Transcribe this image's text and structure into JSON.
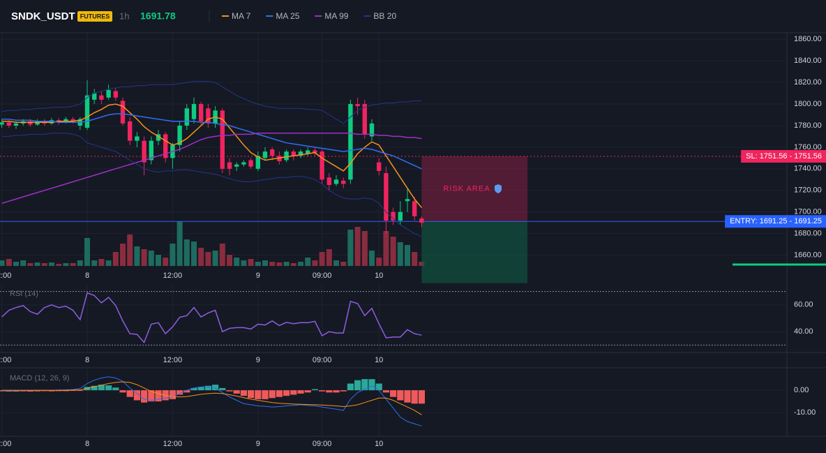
{
  "header": {
    "symbol": "SNDK_USDT",
    "badge": "FUTURES",
    "interval": "1h",
    "last_price": 1691.78
  },
  "chart_data": [
    {
      "type": "candlestick",
      "categories": [
        "12:00",
        null,
        null,
        null,
        null,
        null,
        null,
        null,
        null,
        null,
        null,
        null,
        "8",
        null,
        null,
        null,
        null,
        null,
        null,
        null,
        null,
        null,
        null,
        null,
        "12:00",
        null,
        null,
        null,
        null,
        null,
        null,
        null,
        null,
        null,
        null,
        null,
        "9",
        null,
        null,
        null,
        null,
        null,
        null,
        null,
        null,
        "09:00",
        null,
        null,
        null,
        null,
        null,
        null,
        null,
        "10",
        null,
        null,
        null,
        null,
        null,
        null
      ],
      "open": [
        1781,
        1783,
        1780,
        1782,
        1784,
        1781,
        1784,
        1782,
        1785,
        1783,
        1786,
        1780,
        1778,
        1804,
        1808,
        1806,
        1812,
        1803,
        1784,
        1766,
        1766,
        1748,
        1766,
        1772,
        1750,
        1762,
        1780,
        1786,
        1800,
        1796,
        1782,
        1794,
        1746,
        1742,
        1744,
        1748,
        1740,
        1750,
        1758,
        1752,
        1748,
        1756,
        1752,
        1754,
        1757,
        1756,
        1732,
        1726,
        1729,
        1730,
        1800,
        1800,
        1770,
        1746,
        1736,
        1700,
        1692,
        1710,
        1710,
        1694
      ],
      "high": [
        1786,
        1785,
        1784,
        1786,
        1786,
        1786,
        1786,
        1787,
        1787,
        1788,
        1788,
        1788,
        1822,
        1814,
        1812,
        1818,
        1815,
        1806,
        1788,
        1774,
        1770,
        1770,
        1776,
        1774,
        1764,
        1784,
        1800,
        1806,
        1802,
        1800,
        1798,
        1796,
        1750,
        1746,
        1748,
        1750,
        1756,
        1760,
        1760,
        1756,
        1758,
        1758,
        1758,
        1760,
        1760,
        1758,
        1736,
        1734,
        1732,
        1804,
        1806,
        1804,
        1786,
        1750,
        1742,
        1704,
        1710,
        1722,
        1714,
        1696
      ],
      "low": [
        1778,
        1778,
        1777,
        1780,
        1779,
        1780,
        1780,
        1781,
        1781,
        1782,
        1782,
        1776,
        1776,
        1800,
        1800,
        1804,
        1803,
        1780,
        1762,
        1760,
        1734,
        1744,
        1762,
        1746,
        1740,
        1756,
        1776,
        1782,
        1780,
        1778,
        1778,
        1736,
        1734,
        1738,
        1742,
        1740,
        1738,
        1748,
        1748,
        1744,
        1746,
        1748,
        1750,
        1752,
        1752,
        1726,
        1720,
        1724,
        1722,
        1726,
        1790,
        1768,
        1766,
        1734,
        1680,
        1688,
        1688,
        1700,
        1692,
        1686
      ],
      "close": [
        1783,
        1780,
        1782,
        1784,
        1781,
        1784,
        1782,
        1785,
        1783,
        1786,
        1784,
        1786,
        1808,
        1810,
        1804,
        1813,
        1806,
        1782,
        1766,
        1770,
        1746,
        1766,
        1772,
        1750,
        1762,
        1780,
        1796,
        1800,
        1784,
        1782,
        1794,
        1740,
        1740,
        1744,
        1746,
        1742,
        1752,
        1756,
        1752,
        1747,
        1756,
        1752,
        1756,
        1757,
        1755,
        1730,
        1725,
        1730,
        1726,
        1800,
        1798,
        1772,
        1782,
        1738,
        1692,
        1692,
        1700,
        1712,
        1696,
        1690
      ],
      "volume": [
        8,
        10,
        6,
        8,
        4,
        5,
        4,
        5,
        3,
        4,
        4,
        8,
        40,
        8,
        10,
        8,
        20,
        32,
        45,
        28,
        24,
        22,
        16,
        12,
        32,
        64,
        38,
        35,
        26,
        20,
        22,
        32,
        16,
        12,
        8,
        10,
        6,
        8,
        6,
        5,
        6,
        4,
        6,
        12,
        8,
        20,
        24,
        8,
        6,
        52,
        56,
        50,
        22,
        12,
        50,
        42,
        34,
        30,
        20,
        6
      ],
      "up_color": "#0ecb81",
      "down_color": "#f0245e",
      "volume_up_color": "#1e6b5f",
      "volume_down_color": "#8a2c3f",
      "series": [
        {
          "name": "MA 7",
          "color": "#f7931a",
          "values": [
            1784,
            1784,
            1783,
            1783,
            1783,
            1783,
            1783,
            1783,
            1784,
            1784,
            1784,
            1785,
            1788,
            1792,
            1795,
            1799,
            1800,
            1798,
            1792,
            1786,
            1779,
            1774,
            1770,
            1766,
            1762,
            1764,
            1768,
            1774,
            1780,
            1786,
            1788,
            1786,
            1778,
            1770,
            1762,
            1755,
            1751,
            1748,
            1749,
            1750,
            1751,
            1752,
            1753,
            1754,
            1755,
            1750,
            1746,
            1742,
            1738,
            1745,
            1754,
            1760,
            1765,
            1762,
            1752,
            1742,
            1732,
            1722,
            1712,
            1704
          ]
        },
        {
          "name": "MA 25",
          "color": "#2f6ff0",
          "values": [
            1786,
            1786,
            1785,
            1785,
            1785,
            1784,
            1784,
            1784,
            1783,
            1783,
            1783,
            1783,
            1784,
            1786,
            1788,
            1790,
            1791,
            1791,
            1790,
            1789,
            1788,
            1787,
            1786,
            1785,
            1784,
            1784,
            1784,
            1784,
            1783,
            1783,
            1782,
            1781,
            1780,
            1778,
            1776,
            1774,
            1772,
            1770,
            1768,
            1766,
            1764,
            1763,
            1762,
            1761,
            1760,
            1759,
            1758,
            1757,
            1756,
            1757,
            1758,
            1759,
            1758,
            1756,
            1754,
            1752,
            1749,
            1746,
            1743,
            1740
          ]
        },
        {
          "name": "MA 99",
          "color": "#a12fc4",
          "values": [
            1708,
            1710,
            1712,
            1714,
            1716,
            1718,
            1720,
            1722,
            1724,
            1726,
            1728,
            1730,
            1732,
            1734,
            1736,
            1738,
            1740,
            1742,
            1744,
            1746,
            1748,
            1750,
            1752,
            1754,
            1756,
            1758,
            1761,
            1764,
            1767,
            1769,
            1770,
            1771,
            1771,
            1772,
            1772,
            1772,
            1773,
            1773,
            1773,
            1773,
            1773,
            1773,
            1773,
            1773,
            1773,
            1773,
            1773,
            1773,
            1773,
            1773,
            1772,
            1772,
            1772,
            1771,
            1771,
            1770,
            1770,
            1769,
            1769,
            1768
          ]
        },
        {
          "name": "BB 20",
          "color": "#22378a",
          "upper": [
            1793,
            1794,
            1794,
            1795,
            1795,
            1796,
            1796,
            1797,
            1797,
            1797,
            1798,
            1800,
            1806,
            1810,
            1812,
            1814,
            1815,
            1816,
            1816,
            1817,
            1817,
            1818,
            1818,
            1818,
            1818,
            1819,
            1820,
            1821,
            1821,
            1821,
            1820,
            1816,
            1812,
            1808,
            1805,
            1802,
            1800,
            1798,
            1797,
            1796,
            1796,
            1796,
            1796,
            1795,
            1795,
            1794,
            1790,
            1786,
            1782,
            1788,
            1794,
            1797,
            1799,
            1800,
            1801,
            1801,
            1802,
            1802,
            1803,
            1803
          ],
          "lower": [
            1770,
            1770,
            1771,
            1771,
            1772,
            1772,
            1772,
            1773,
            1773,
            1773,
            1772,
            1770,
            1764,
            1762,
            1760,
            1758,
            1756,
            1752,
            1748,
            1744,
            1740,
            1738,
            1737,
            1738,
            1738,
            1739,
            1739,
            1738,
            1737,
            1736,
            1735,
            1733,
            1731,
            1729,
            1728,
            1728,
            1729,
            1730,
            1731,
            1732,
            1732,
            1733,
            1733,
            1732,
            1730,
            1726,
            1720,
            1716,
            1713,
            1712,
            1712,
            1713,
            1712,
            1708,
            1700,
            1694,
            1688,
            1684,
            1680,
            1677
          ]
        }
      ],
      "ylim": [
        1650,
        1866
      ],
      "yticks": [
        {
          "value": 1660,
          "label": "1660.00"
        },
        {
          "value": 1680,
          "label": "1680.00"
        },
        {
          "value": 1700,
          "label": "1700.00"
        },
        {
          "value": 1720,
          "label": "1720.00"
        },
        {
          "value": 1740,
          "label": "1740.00"
        },
        {
          "value": 1760,
          "label": "1760.00"
        },
        {
          "value": 1780,
          "label": "1780.00"
        },
        {
          "value": 1800,
          "label": "1800.00"
        },
        {
          "value": 1820,
          "label": "1820.00"
        },
        {
          "value": 1840,
          "label": "1840.00"
        },
        {
          "value": 1860,
          "label": "1860.00"
        }
      ],
      "levels": [
        {
          "label": "SL: 1751.56 - 1751.56",
          "value": 1751.56,
          "color": "#f0245e",
          "style": "dashed"
        },
        {
          "label": "ENTRY: 1691.25 - 1691.25",
          "value": 1691.25,
          "color": "#2962ff",
          "style": "solid"
        }
      ],
      "risk_area": {
        "label": "RISK AREA",
        "color": "#f0245e"
      },
      "reward_area": {
        "bottom": 1634,
        "color": "#0e5a42"
      }
    },
    {
      "type": "line",
      "title": "RSI (14)",
      "categories": [
        "12:00",
        null,
        null,
        null,
        null,
        null,
        null,
        null,
        null,
        null,
        null,
        null,
        "8",
        null,
        null,
        null,
        null,
        null,
        null,
        null,
        null,
        null,
        null,
        null,
        "12:00",
        null,
        null,
        null,
        null,
        null,
        null,
        null,
        null,
        null,
        null,
        null,
        "9",
        null,
        null,
        null,
        null,
        null,
        null,
        null,
        null,
        "09:00",
        null,
        null,
        null,
        null,
        null,
        null,
        null,
        "10",
        null,
        null,
        null,
        null,
        null,
        null
      ],
      "series": [
        {
          "name": "RSI",
          "color": "#8e5ee0",
          "values": [
            51,
            56,
            58,
            59.5,
            55,
            53,
            58,
            60,
            58,
            59,
            56,
            49,
            69,
            67,
            61.5,
            65.6,
            59.5,
            48,
            38.5,
            38,
            32,
            45.6,
            46.7,
            38.5,
            43.6,
            50.8,
            52,
            58,
            51,
            54,
            56,
            40,
            42.5,
            43,
            43,
            42,
            45.6,
            45,
            48,
            44.6,
            47,
            46,
            46.7,
            46.7,
            47.7,
            37,
            40,
            39,
            39,
            62.6,
            61,
            52,
            57.4,
            46,
            35.4,
            36,
            36,
            41.5,
            38.5,
            37.4
          ]
        }
      ],
      "bands": [
        70,
        30
      ],
      "ylim": [
        25,
        75
      ],
      "yticks": [
        {
          "value": 40,
          "label": "40.00"
        },
        {
          "value": 60,
          "label": "60.00"
        }
      ]
    },
    {
      "type": "macd",
      "title": "MACD (12, 26, 9)",
      "categories": [
        "12:00",
        null,
        null,
        null,
        null,
        null,
        null,
        null,
        null,
        null,
        null,
        null,
        "8",
        null,
        null,
        null,
        null,
        null,
        null,
        null,
        null,
        null,
        null,
        null,
        "12:00",
        null,
        null,
        null,
        null,
        null,
        null,
        null,
        null,
        null,
        null,
        null,
        "9",
        null,
        null,
        null,
        null,
        null,
        null,
        null,
        null,
        "09:00",
        null,
        null,
        null,
        null,
        null,
        null,
        null,
        "10",
        null,
        null,
        null,
        null,
        null,
        null
      ],
      "histogram": [
        -0.5,
        -0.6,
        -0.6,
        -0.5,
        -0.6,
        -0.5,
        -0.4,
        -0.5,
        -0.4,
        -0.4,
        -0.3,
        -0.3,
        1.5,
        2,
        2.5,
        2.2,
        1.2,
        -1,
        -3,
        -4.5,
        -5.5,
        -5,
        -5,
        -4.5,
        -4,
        -2,
        -1,
        1,
        1.5,
        2,
        2.5,
        1,
        -0.5,
        -1.5,
        -2.5,
        -3.5,
        -4,
        -4,
        -3.5,
        -3,
        -2.5,
        -2,
        -1.5,
        -1,
        0.5,
        -0.5,
        -1,
        -1,
        -0.5,
        3,
        4.5,
        5,
        5,
        3,
        -1,
        -3,
        -4.5,
        -5.5,
        -6,
        -6
      ],
      "up_color": "#2aa89a",
      "down_color": "#f05a5a",
      "series": [
        {
          "name": "MACD",
          "color": "#2f6ff0",
          "values": [
            -0.3,
            -0.2,
            -0.2,
            -0.1,
            -0.1,
            0,
            0,
            0,
            0.1,
            0.2,
            0.3,
            0.8,
            3,
            4.5,
            5.5,
            6,
            5.5,
            4,
            1,
            -1.5,
            -4,
            -4.5,
            -4,
            -3.5,
            -3,
            -1.5,
            0,
            1,
            1.5,
            1.5,
            1,
            -1,
            -3,
            -4.5,
            -6,
            -6.5,
            -7,
            -7.2,
            -7.5,
            -7.3,
            -7,
            -6.8,
            -6.5,
            -6.8,
            -7,
            -7.5,
            -8,
            -8.5,
            -9,
            -4,
            -1,
            0.5,
            2,
            0,
            -4,
            -8,
            -12,
            -14,
            -15,
            -16
          ]
        },
        {
          "name": "Signal",
          "color": "#f7931a",
          "values": [
            0,
            0,
            0,
            0,
            0,
            0,
            0,
            0,
            0,
            0,
            0.1,
            0.2,
            0.8,
            1.5,
            2.3,
            3,
            3.5,
            3.8,
            3.5,
            2.5,
            1,
            -0.5,
            -1.5,
            -2.3,
            -2.8,
            -3,
            -2.8,
            -2.3,
            -1.8,
            -1.5,
            -1.3,
            -1.5,
            -2,
            -2.6,
            -3.3,
            -4,
            -4.5,
            -5,
            -5.5,
            -5.8,
            -6,
            -6.2,
            -6.3,
            -6.4,
            -6.5,
            -6.6,
            -6.8,
            -7,
            -7.3,
            -7,
            -6.5,
            -5.5,
            -4.5,
            -3.5,
            -3.5,
            -4.5,
            -6,
            -7.5,
            -9,
            -11
          ]
        }
      ],
      "ylim": [
        -20.6,
        9.1
      ],
      "yticks": [
        {
          "value": -10,
          "label": "-10.00"
        },
        {
          "value": 0,
          "label": "0.00"
        }
      ]
    }
  ]
}
